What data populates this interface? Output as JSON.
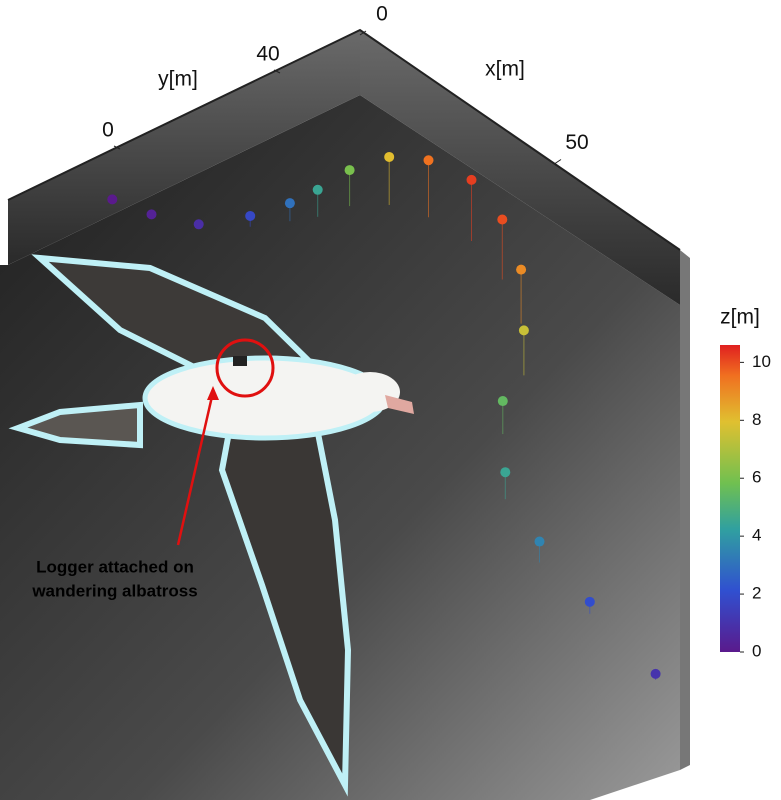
{
  "chart_data": {
    "type": "trajectory3d",
    "xlabel": "x[m]",
    "ylabel": "y[m]",
    "xticks": [
      0,
      50
    ],
    "yticks": [
      0,
      40
    ],
    "colorbar_label": "z[m]",
    "clim": [
      0,
      10.6
    ],
    "cticks": [
      0,
      2,
      4,
      6,
      8,
      10
    ],
    "colormap": "rainbow",
    "x": [
      -3,
      5,
      13,
      18,
      21,
      23,
      24,
      28,
      35,
      45,
      57,
      69,
      81,
      92,
      107,
      125,
      142,
      164
    ],
    "y": [
      1,
      3,
      7,
      15,
      22,
      27,
      34,
      40,
      43,
      44,
      40,
      33,
      22,
      6,
      -8,
      -17,
      -21,
      -26
    ],
    "z": [
      0,
      0.3,
      0.8,
      1.8,
      3,
      4.5,
      6,
      8,
      9.5,
      10.2,
      10,
      9,
      7.5,
      5.5,
      4.5,
      3.5,
      2,
      1
    ]
  },
  "annotation": [
    "Logger attached on",
    "wandering albatross"
  ]
}
